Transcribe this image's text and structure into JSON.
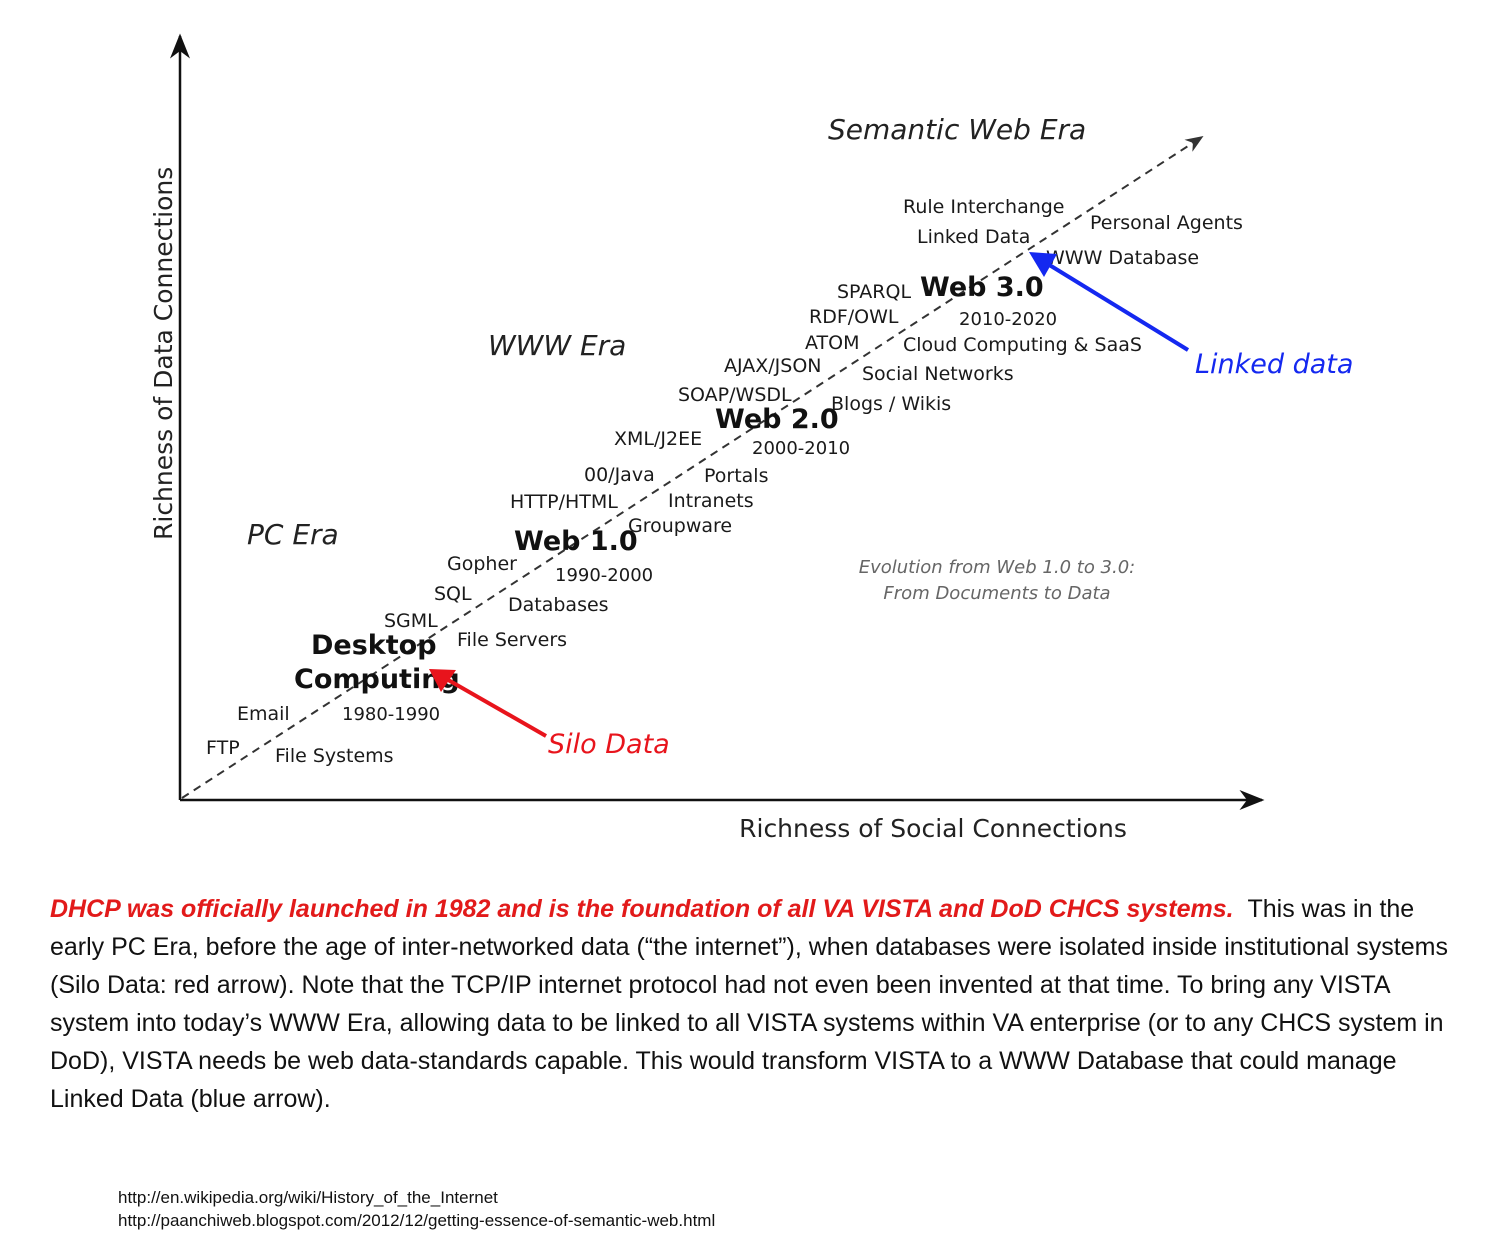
{
  "diagram": {
    "y_axis_title": "Richness of Data Connections",
    "x_axis_title": "Richness of Social Connections",
    "eras": {
      "semantic": "Semantic Web Era",
      "www": "WWW Era",
      "pc": "PC Era"
    },
    "stages": {
      "desktop_line1": "Desktop",
      "desktop_line2": "Computing",
      "desktop_years": "1980-1990",
      "web1": "Web 1.0",
      "web1_years": "1990-2000",
      "web2": "Web 2.0",
      "web2_years": "2000-2010",
      "web3": "Web 3.0",
      "web3_years": "2010-2020"
    },
    "left_terms": {
      "ftp": "FTP",
      "email": "Email",
      "sgml": "SGML",
      "sql": "SQL",
      "gopher": "Gopher",
      "http_html": "HTTP/HTML",
      "oo_java": "00/Java",
      "xml_j2ee": "XML/J2EE",
      "soap_wsdl": "SOAP/WSDL",
      "ajax_json": "AJAX/JSON",
      "atom": "ATOM",
      "rdf_owl": "RDF/OWL",
      "sparql": "SPARQL",
      "linked_data": "Linked Data",
      "rule_interchange": "Rule Interchange"
    },
    "right_terms": {
      "file_systems": "File Systems",
      "file_servers": "File Servers",
      "databases": "Databases",
      "groupware": "Groupware",
      "intranets": "Intranets",
      "portals": "Portals",
      "blogs_wikis": "Blogs / Wikis",
      "social_networks": "Social Networks",
      "cloud_saas": "Cloud Computing & SaaS",
      "www_database": "WWW Database",
      "personal_agents": "Personal Agents"
    },
    "evolution_line1": "Evolution from Web 1.0 to 3.0:",
    "evolution_line2": "From Documents to Data",
    "callouts": {
      "silo_data": "Silo Data",
      "linked_data": "Linked data"
    },
    "colors": {
      "silo_arrow": "#e8141c",
      "linked_arrow": "#1428f0",
      "caption_lead": "#e21a1a"
    }
  },
  "caption": {
    "lead": "DHCP was officially launched in 1982 and is the foundation of all VA VISTA and DoD CHCS systems.",
    "body": "This was in the early PC Era, before the age of  inter-networked data (“the internet”), when databases were isolated inside institutional systems (Silo Data: red arrow).  Note that the TCP/IP internet protocol had not even been invented at that time.  To bring any VISTA system into today’s WWW Era,  allowing data to be linked to all  VISTA systems within VA enterprise (or to any CHCS system in DoD), VISTA needs be web data-standards capable. This would transform VISTA to a  WWW Database that could manage Linked Data (blue arrow)."
  },
  "references": [
    "http://en.wikipedia.org/wiki/History_of_the_Internet",
    "http://paanchiweb.blogspot.com/2012/12/getting-essence-of-semantic-web.html"
  ]
}
